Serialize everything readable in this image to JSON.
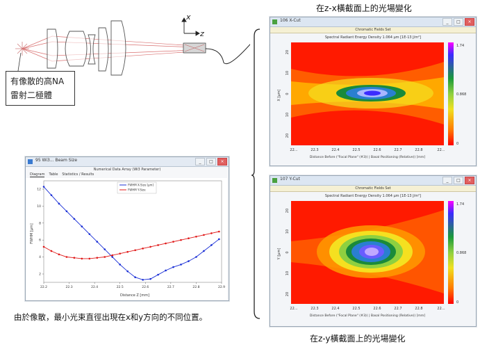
{
  "optics": {
    "axis_x": "x",
    "axis_z": "z",
    "source_label_line1": "有像散的高NA",
    "source_label_line2": "雷射二極體"
  },
  "captions": {
    "top_right": "在z-x橫截面上的光場變化",
    "bottom_right": "在z-y橫截面上的光場變化",
    "bottom_left": "由於像散，最小光束直徑出現在x和y方向的不同位置。"
  },
  "xcut_window": {
    "title": "106 X-Cut",
    "subbar": "Chromatic Fields Set",
    "plot_title": "Spectral Radiant Energy Density 1.064 µm  [1E-13 J/m²]",
    "ylabel": "X [µm]",
    "xlabel": "Distance Before (\"Focal Plane\" (#3)) | Basal Positioning (Relative)) [mm]",
    "xticks": [
      "22...",
      "22.3",
      "22.4",
      "22.5",
      "22.6",
      "22.7",
      "22.8",
      "22..."
    ],
    "yticks": [
      "20",
      "10",
      "0",
      "10",
      "20"
    ],
    "cbar": [
      "1.74",
      "0.868",
      "0"
    ],
    "win_buttons": [
      "_",
      "□",
      "×"
    ]
  },
  "ycut_window": {
    "title": "107 Y-Cut",
    "subbar": "Chromatic Fields Set",
    "plot_title": "Spectral Radiant Energy Density 1.064 µm  [1E-13 J/m²]",
    "ylabel": "Y [µm]",
    "xlabel": "Distance Before (\"Focal Plane\" (#3)) | Basal Positioning (Relative)) [mm]",
    "xticks": [
      "22...",
      "22.3",
      "22.4",
      "22.5",
      "22.6",
      "22.7",
      "22.8",
      "22..."
    ],
    "yticks": [
      "20",
      "10",
      "0",
      "10",
      "20"
    ],
    "cbar": [
      "1.74",
      "0.868",
      "0"
    ],
    "win_buttons": [
      "_",
      "□",
      "×"
    ]
  },
  "plot_window": {
    "title": "95 Wi3... Beam Size",
    "subtitle": "Numerical Data Array (Wi3 Parameter)",
    "tabs": [
      "Diagram",
      "Table",
      "Statistics / Results"
    ],
    "ylabel": "FWHM [µm]",
    "xlabel": "Distance Z [mm]",
    "xticks": [
      "22.2",
      "22.3",
      "22.4",
      "22.5",
      "22.6",
      "22.7",
      "22.8",
      "22.9"
    ],
    "yticks": [
      "12",
      "10",
      "8",
      "6",
      "4",
      "2"
    ],
    "legend": [
      "FWHM X-Size [µm]",
      "FWHM Y-Size"
    ],
    "win_buttons": [
      "_",
      "□",
      "×"
    ]
  },
  "chart_data": {
    "type": "line",
    "xlabel": "Distance Z [mm]",
    "ylabel": "FWHM [µm]",
    "x": [
      22.2,
      22.23,
      22.26,
      22.29,
      22.32,
      22.35,
      22.38,
      22.41,
      22.44,
      22.47,
      22.5,
      22.53,
      22.56,
      22.59,
      22.62,
      22.65,
      22.68,
      22.71,
      22.74,
      22.77,
      22.8,
      22.83,
      22.86,
      22.89
    ],
    "series": [
      {
        "name": "FWHM X-Size [µm]",
        "color": "#1a2fd6",
        "values": [
          12.3,
          11.3,
          10.3,
          9.4,
          8.5,
          7.6,
          6.7,
          5.8,
          4.9,
          4.0,
          3.1,
          2.3,
          1.6,
          1.3,
          1.4,
          1.9,
          2.4,
          2.8,
          3.1,
          3.5,
          4.0,
          4.7,
          5.4,
          6.1
        ]
      },
      {
        "name": "FWHM Y-Size",
        "color": "#e01818",
        "values": [
          5.2,
          4.7,
          4.3,
          4.0,
          3.9,
          3.8,
          3.8,
          3.9,
          4.0,
          4.2,
          4.4,
          4.6,
          4.8,
          5.0,
          5.2,
          5.4,
          5.6,
          5.8,
          6.0,
          6.2,
          6.4,
          6.6,
          6.8,
          7.0
        ]
      }
    ],
    "xlim": [
      22.2,
      22.9
    ],
    "ylim": [
      1,
      13
    ]
  }
}
